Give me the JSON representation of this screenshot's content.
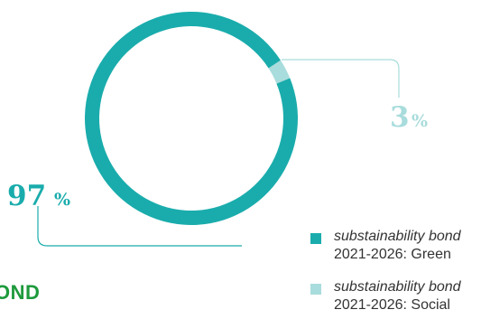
{
  "chart_data": {
    "type": "pie",
    "donut": true,
    "slices": [
      {
        "label_line1": "substainability bond",
        "label_line2": "2021-2026: Green",
        "value": 97,
        "display": "97",
        "unit": "%",
        "color": "#1aacac"
      },
      {
        "label_line1": "substainability bond",
        "label_line2": "2021-2026: Social",
        "value": 3,
        "display": "3",
        "unit": "%",
        "color": "#a9dcdc"
      }
    ],
    "legend_position": "bottom-right"
  },
  "fragment": {
    "heading_cut": "OND",
    "heading_color": "#1e9a3c"
  }
}
